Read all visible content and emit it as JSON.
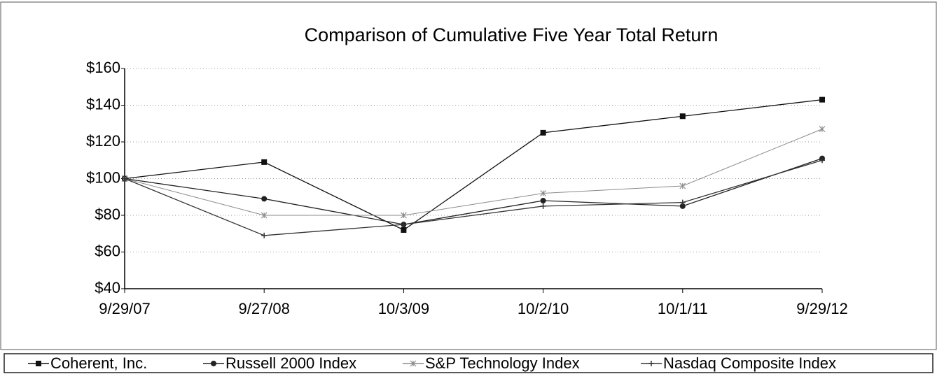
{
  "chart_data": {
    "type": "line",
    "title": "Comparison of Cumulative Five Year Total Return",
    "categories": [
      "9/29/07",
      "9/27/08",
      "10/3/09",
      "10/2/10",
      "10/1/11",
      "9/29/12"
    ],
    "series": [
      {
        "name": "Coherent, Inc.",
        "color": "#111111",
        "marker": "square",
        "values": [
          100,
          109,
          72,
          125,
          134,
          143
        ]
      },
      {
        "name": "Russell 2000 Index",
        "color": "#222222",
        "marker": "diamond",
        "values": [
          100,
          89,
          75,
          88,
          85,
          111
        ]
      },
      {
        "name": "S&P Technology Index",
        "color": "#8a8a8a",
        "marker": "star",
        "values": [
          100,
          80,
          80,
          92,
          96,
          127
        ]
      },
      {
        "name": "Nasdaq Composite Index",
        "color": "#333333",
        "marker": "plus",
        "values": [
          100,
          69,
          75,
          85,
          87,
          110
        ]
      }
    ],
    "ylim": [
      40,
      160
    ],
    "yticks": [
      {
        "value": 40,
        "label": "$40"
      },
      {
        "value": 60,
        "label": "$60"
      },
      {
        "value": 80,
        "label": "$80"
      },
      {
        "value": 100,
        "label": "$100"
      },
      {
        "value": 120,
        "label": "$120"
      },
      {
        "value": 140,
        "label": "$140"
      },
      {
        "value": 160,
        "label": "$160"
      }
    ],
    "grid": true,
    "legend": "bottom"
  }
}
